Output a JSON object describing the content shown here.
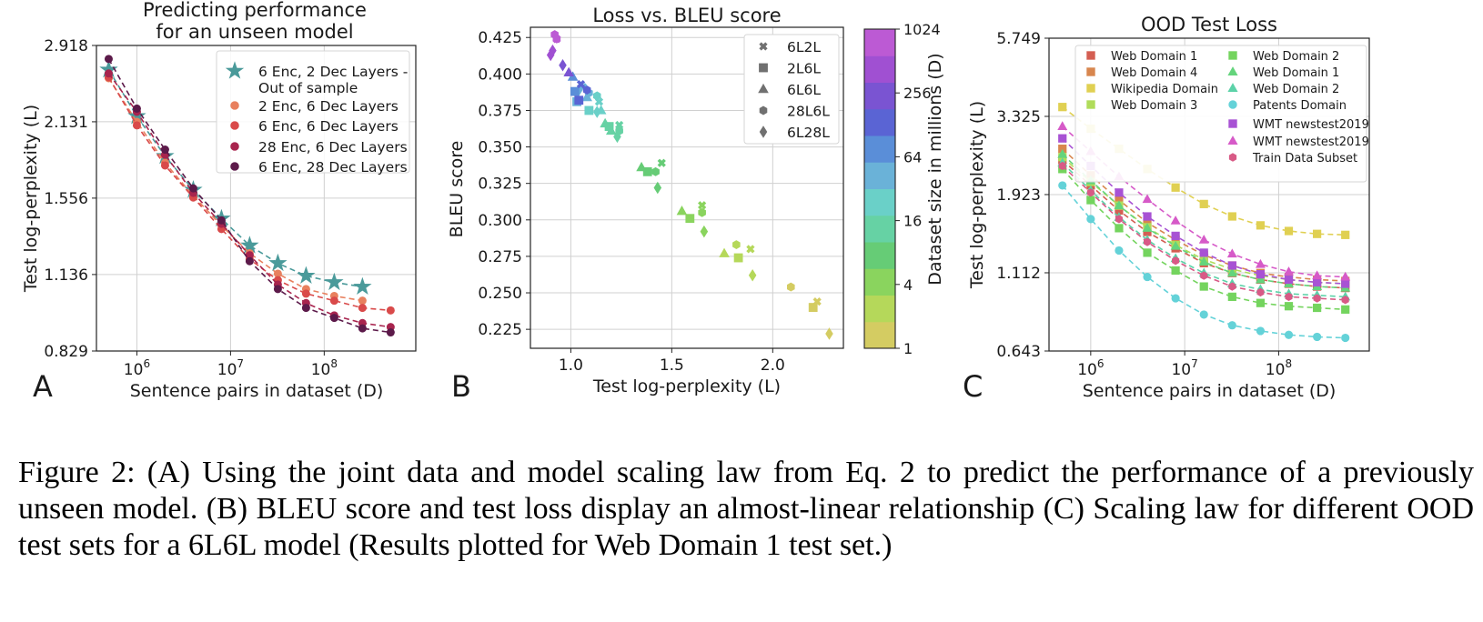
{
  "caption": "Figure 2: (A) Using the joint data and model scaling law from Eq. 2 to predict the performance of a previously unseen model. (B) BLEU score and test loss display an almost-linear relationship (C) Scaling law for different OOD test sets for a 6L6L model (Results plotted for Web Domain 1 test set.)",
  "chart_data": [
    {
      "id": "A",
      "panel_letter": "A",
      "type": "line",
      "title_lines": [
        "Predicting performance",
        "for an unseen model"
      ],
      "xlabel": "Sentence pairs in dataset (D)",
      "ylabel": "Test log-perplexity (L)",
      "xscale": "log",
      "yscale": "log",
      "xlim": [
        370000.0,
        950000000.0
      ],
      "ylim": [
        0.829,
        2.918
      ],
      "x_ticks": [
        {
          "base": "10",
          "exp": "6",
          "value": 1000000.0
        },
        {
          "base": "10",
          "exp": "7",
          "value": 10000000.0
        },
        {
          "base": "10",
          "exp": "8",
          "value": 100000000.0
        }
      ],
      "y_ticks": [
        "2.918",
        "2.131",
        "1.556",
        "1.136",
        "0.829"
      ],
      "legend_position": "upper-right",
      "x": [
        500000.0,
        1000000.0,
        2000000.0,
        4000000.0,
        8000000.0,
        16000000.0,
        32000000.0,
        64000000.0,
        128000000.0,
        256000000.0,
        512000000.0
      ],
      "series": [
        {
          "name": "6 Enc, 2 Dec Layers -\nOut of sample",
          "marker": "star",
          "color": "#4a9a9a",
          "values": [
            2.64,
            2.18,
            1.85,
            1.61,
            1.43,
            1.28,
            1.19,
            1.13,
            1.1,
            1.08,
            null
          ]
        },
        {
          "name": "2 Enc, 6 Dec Layers",
          "marker": "circle",
          "color": "#e8805e",
          "values": [
            2.55,
            2.13,
            1.8,
            1.57,
            1.39,
            1.24,
            1.14,
            1.07,
            1.04,
            1.02,
            null
          ]
        },
        {
          "name": "6 Enc, 6 Dec Layers",
          "marker": "circle",
          "color": "#d94a4a",
          "values": [
            2.56,
            2.1,
            1.78,
            1.56,
            1.37,
            1.21,
            1.11,
            1.05,
            1.02,
            0.99,
            0.98
          ]
        },
        {
          "name": "28 Enc, 6 Dec Layers",
          "marker": "circle",
          "color": "#a8244e",
          "values": [
            2.6,
            2.22,
            1.86,
            1.59,
            1.4,
            1.23,
            1.09,
            1.01,
            0.96,
            0.93,
            0.915
          ]
        },
        {
          "name": "6 Enc, 28 Dec Layers",
          "marker": "circle",
          "color": "#5c1a4a",
          "values": [
            2.76,
            2.25,
            1.9,
            1.62,
            1.42,
            1.2,
            1.07,
            0.99,
            0.95,
            0.91,
            0.895
          ]
        }
      ]
    },
    {
      "id": "B",
      "panel_letter": "B",
      "type": "scatter",
      "title": "Loss vs. BLEU score",
      "xlabel": "Test log-perplexity (L)",
      "ylabel": "BLEU score",
      "xlim": [
        0.8,
        2.35
      ],
      "ylim": [
        0.212,
        0.432
      ],
      "x_ticks": [
        "1.0",
        "1.5",
        "2.0"
      ],
      "y_ticks": [
        "0.425",
        "0.400",
        "0.375",
        "0.350",
        "0.325",
        "0.300",
        "0.275",
        "0.250",
        "0.225"
      ],
      "legend_position": "upper-right",
      "legend": [
        {
          "label": "6L2L",
          "marker": "x"
        },
        {
          "label": "2L6L",
          "marker": "square"
        },
        {
          "label": "6L6L",
          "marker": "triangle"
        },
        {
          "label": "28L6L",
          "marker": "hexagon"
        },
        {
          "label": "6L28L",
          "marker": "diamond"
        }
      ],
      "colorbar": {
        "label": "Dataset size in millions (D)",
        "ticks": [
          "1024",
          "256",
          "64",
          "16",
          "4",
          "1"
        ],
        "colors": [
          "#d4cc62",
          "#b5d85a",
          "#8ad45e",
          "#66cc76",
          "#66d2a4",
          "#6ad0c8",
          "#6ab2d8",
          "#5a8ed8",
          "#5a64d4",
          "#7a54d2",
          "#a050d2",
          "#bc5ad4"
        ]
      },
      "points": [
        {
          "x": 2.28,
          "y": 0.222,
          "marker": "diamond",
          "level": 0
        },
        {
          "x": 2.22,
          "y": 0.244,
          "marker": "x",
          "level": 0
        },
        {
          "x": 2.2,
          "y": 0.24,
          "marker": "square",
          "level": 0
        },
        {
          "x": 2.09,
          "y": 0.254,
          "marker": "hexagon",
          "level": 0
        },
        {
          "x": 1.9,
          "y": 0.262,
          "marker": "diamond",
          "level": 1
        },
        {
          "x": 1.89,
          "y": 0.28,
          "marker": "x",
          "level": 1
        },
        {
          "x": 1.83,
          "y": 0.274,
          "marker": "square",
          "level": 1
        },
        {
          "x": 1.82,
          "y": 0.283,
          "marker": "hexagon",
          "level": 1
        },
        {
          "x": 1.76,
          "y": 0.277,
          "marker": "triangle",
          "level": 1
        },
        {
          "x": 1.66,
          "y": 0.292,
          "marker": "diamond",
          "level": 2
        },
        {
          "x": 1.65,
          "y": 0.31,
          "marker": "x",
          "level": 2
        },
        {
          "x": 1.65,
          "y": 0.305,
          "marker": "hexagon",
          "level": 2
        },
        {
          "x": 1.59,
          "y": 0.301,
          "marker": "square",
          "level": 2
        },
        {
          "x": 1.55,
          "y": 0.306,
          "marker": "triangle",
          "level": 2
        },
        {
          "x": 1.43,
          "y": 0.322,
          "marker": "diamond",
          "level": 3
        },
        {
          "x": 1.45,
          "y": 0.339,
          "marker": "x",
          "level": 3
        },
        {
          "x": 1.42,
          "y": 0.333,
          "marker": "hexagon",
          "level": 3
        },
        {
          "x": 1.38,
          "y": 0.333,
          "marker": "square",
          "level": 3
        },
        {
          "x": 1.35,
          "y": 0.336,
          "marker": "triangle",
          "level": 3
        },
        {
          "x": 1.23,
          "y": 0.357,
          "marker": "diamond",
          "level": 4
        },
        {
          "x": 1.24,
          "y": 0.365,
          "marker": "x",
          "level": 4
        },
        {
          "x": 1.24,
          "y": 0.361,
          "marker": "hexagon",
          "level": 4
        },
        {
          "x": 1.19,
          "y": 0.364,
          "marker": "square",
          "level": 4
        },
        {
          "x": 1.17,
          "y": 0.366,
          "marker": "triangle",
          "level": 4
        },
        {
          "x": 1.2,
          "y": 0.361,
          "marker": "triangle",
          "level": 4
        },
        {
          "x": 1.13,
          "y": 0.374,
          "marker": "diamond",
          "level": 5
        },
        {
          "x": 1.14,
          "y": 0.381,
          "marker": "x",
          "level": 5
        },
        {
          "x": 1.13,
          "y": 0.385,
          "marker": "hexagon",
          "level": 5
        },
        {
          "x": 1.09,
          "y": 0.375,
          "marker": "square",
          "level": 5
        },
        {
          "x": 1.15,
          "y": 0.375,
          "marker": "triangle",
          "level": 5
        },
        {
          "x": 1.04,
          "y": 0.389,
          "marker": "diamond",
          "level": 6
        },
        {
          "x": 1.06,
          "y": 0.391,
          "marker": "x",
          "level": 6
        },
        {
          "x": 1.09,
          "y": 0.387,
          "marker": "hexagon",
          "level": 6
        },
        {
          "x": 1.03,
          "y": 0.381,
          "marker": "square",
          "level": 6
        },
        {
          "x": 1.08,
          "y": 0.384,
          "marker": "triangle",
          "level": 6
        },
        {
          "x": 1.01,
          "y": 0.398,
          "marker": "triangle",
          "level": 7
        },
        {
          "x": 1.02,
          "y": 0.388,
          "marker": "square",
          "level": 7
        },
        {
          "x": 1.08,
          "y": 0.389,
          "marker": "hexagon",
          "level": 8
        },
        {
          "x": 1.05,
          "y": 0.393,
          "marker": "x",
          "level": 8
        },
        {
          "x": 1.04,
          "y": 0.382,
          "marker": "square",
          "level": 8
        },
        {
          "x": 0.96,
          "y": 0.406,
          "marker": "diamond",
          "level": 9
        },
        {
          "x": 0.99,
          "y": 0.401,
          "marker": "triangle",
          "level": 9
        },
        {
          "x": 0.91,
          "y": 0.416,
          "marker": "diamond",
          "level": 10
        },
        {
          "x": 0.9,
          "y": 0.413,
          "marker": "diamond",
          "level": 10
        },
        {
          "x": 0.92,
          "y": 0.427,
          "marker": "hexagon",
          "level": 11
        },
        {
          "x": 0.93,
          "y": 0.424,
          "marker": "hexagon",
          "level": 11
        },
        {
          "x": 0.93,
          "y": 0.424,
          "marker": "x",
          "level": 11
        }
      ]
    },
    {
      "id": "C",
      "panel_letter": "C",
      "type": "line",
      "title": "OOD Test Loss",
      "xlabel": "Sentence pairs in dataset (D)",
      "ylabel": "Test log-perplexity (L)",
      "xscale": "log",
      "yscale": "log",
      "xlim": [
        360000.0,
        920000000.0
      ],
      "ylim": [
        0.643,
        5.749
      ],
      "x_ticks": [
        {
          "base": "10",
          "exp": "6",
          "value": 1000000.0
        },
        {
          "base": "10",
          "exp": "7",
          "value": 10000000.0
        },
        {
          "base": "10",
          "exp": "8",
          "value": 100000000.0
        }
      ],
      "y_ticks": [
        "5.749",
        "3.325",
        "1.923",
        "1.112",
        "0.643"
      ],
      "legend_position": "upper-right",
      "x": [
        500000.0,
        1000000.0,
        2000000.0,
        4000000.0,
        8000000.0,
        16000000.0,
        32000000.0,
        64000000.0,
        128000000.0,
        256000000.0,
        512000000.0
      ],
      "series": [
        {
          "name": "Web Domain 1",
          "marker": "square",
          "color": "#d45e52",
          "values": [
            2.45,
            2.05,
            1.72,
            1.48,
            1.32,
            1.19,
            1.11,
            1.06,
            1.03,
            1.01,
            1.0
          ]
        },
        {
          "name": "Web Domain 4",
          "marker": "square",
          "color": "#d8864e",
          "values": [
            2.65,
            2.2,
            1.85,
            1.58,
            1.4,
            1.26,
            1.17,
            1.11,
            1.08,
            1.06,
            1.05
          ]
        },
        {
          "name": "Wikipedia Domain",
          "marker": "square",
          "color": "#e0d052",
          "values": [
            3.55,
            3.05,
            2.65,
            2.3,
            2.02,
            1.8,
            1.65,
            1.55,
            1.49,
            1.46,
            1.45
          ]
        },
        {
          "name": "Web Domain 3",
          "marker": "square",
          "color": "#b0dc5a",
          "values": [
            2.5,
            2.1,
            1.78,
            1.53,
            1.35,
            1.22,
            1.14,
            1.09,
            1.06,
            1.04,
            1.03
          ]
        },
        {
          "name": "Web Domain 2",
          "marker": "square",
          "color": "#74d45e",
          "values": [
            2.3,
            1.85,
            1.52,
            1.28,
            1.13,
            1.01,
            0.94,
            0.9,
            0.88,
            0.87,
            0.86
          ]
        },
        {
          "name": "Web Domain 1",
          "marker": "triangle",
          "color": "#64d47c",
          "values": [
            2.55,
            2.12,
            1.78,
            1.52,
            1.34,
            1.2,
            1.11,
            1.06,
            1.03,
            1.01,
            1.0
          ]
        },
        {
          "name": "Web Domain 2",
          "marker": "triangle",
          "color": "#5cd2a8",
          "values": [
            2.4,
            1.98,
            1.64,
            1.4,
            1.23,
            1.11,
            1.03,
            0.99,
            0.96,
            0.95,
            0.94
          ]
        },
        {
          "name": "Patents Domain",
          "marker": "circle",
          "color": "#64d2d8",
          "values": [
            2.05,
            1.62,
            1.3,
            1.08,
            0.93,
            0.83,
            0.77,
            0.74,
            0.72,
            0.71,
            0.705
          ]
        },
        {
          "name": "WMT newstest2019",
          "marker": "square",
          "color": "#a852d4",
          "values": [
            2.85,
            2.35,
            1.95,
            1.65,
            1.44,
            1.28,
            1.17,
            1.1,
            1.06,
            1.04,
            1.03
          ]
        },
        {
          "name": "WMT newstest2019",
          "marker": "triangle",
          "color": "#d65ac8",
          "values": [
            3.1,
            2.6,
            2.18,
            1.86,
            1.6,
            1.4,
            1.27,
            1.18,
            1.12,
            1.09,
            1.08
          ]
        },
        {
          "name": "Train Data Subset",
          "marker": "hexagon",
          "color": "#d85a86",
          "values": [
            2.35,
            1.95,
            1.62,
            1.38,
            1.21,
            1.09,
            1.01,
            0.97,
            0.94,
            0.93,
            0.92
          ]
        }
      ]
    }
  ]
}
